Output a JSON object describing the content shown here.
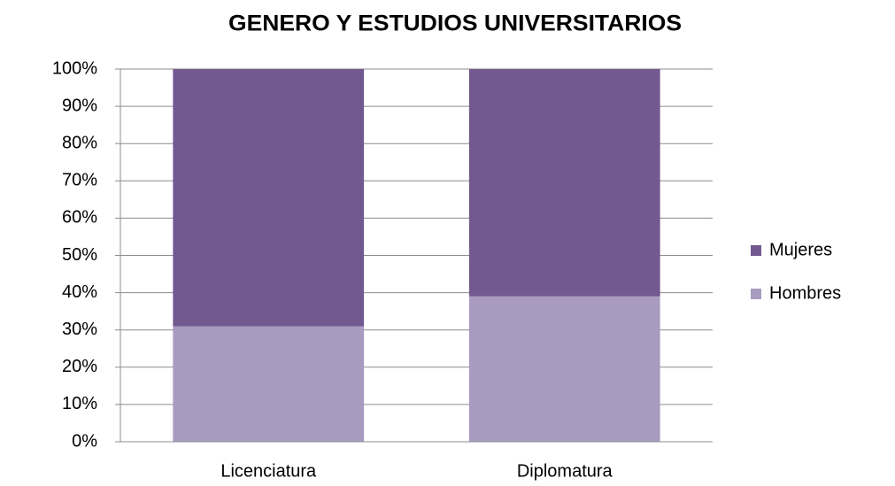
{
  "chart_data": {
    "type": "stacked_bar",
    "title": "GENERO Y ESTUDIOS UNIVERSITARIOS",
    "categories": [
      "Licenciatura",
      "Diplomatura"
    ],
    "series": [
      {
        "name": "Hombres",
        "color": "#a99bbf",
        "values": [
          31,
          39
        ]
      },
      {
        "name": "Mujeres",
        "color": "#725990",
        "values": [
          69,
          61
        ]
      }
    ],
    "ylim": [
      0,
      100
    ],
    "yticks": [
      {
        "value": 0,
        "label": "0%"
      },
      {
        "value": 10,
        "label": "10%"
      },
      {
        "value": 20,
        "label": "20%"
      },
      {
        "value": 30,
        "label": "30%"
      },
      {
        "value": 40,
        "label": "40%"
      },
      {
        "value": 50,
        "label": "50%"
      },
      {
        "value": 60,
        "label": "60%"
      },
      {
        "value": 70,
        "label": "70%"
      },
      {
        "value": 80,
        "label": "80%"
      },
      {
        "value": 90,
        "label": "90%"
      },
      {
        "value": 100,
        "label": "100%"
      }
    ],
    "grid": true,
    "legend": "right"
  }
}
